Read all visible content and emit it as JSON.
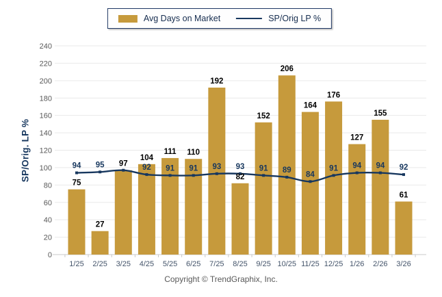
{
  "legend": {
    "bar_label": "Avg Days on Market",
    "line_label": "SP/Orig LP %"
  },
  "footer": {
    "copyright": "Copyright © TrendGraphix, Inc."
  },
  "chart_data": {
    "type": "bar",
    "title": "",
    "xlabel": "",
    "ylabel": "SP/Orig. LP %",
    "categories": [
      "1/25",
      "2/25",
      "3/25",
      "4/25",
      "5/25",
      "6/25",
      "7/25",
      "8/25",
      "9/25",
      "10/25",
      "11/25",
      "12/25",
      "1/26",
      "2/26",
      "3/26"
    ],
    "series": [
      {
        "name": "Avg Days on Market",
        "type": "bar",
        "color": "#C69A3C",
        "values": [
          75,
          27,
          97,
          104,
          111,
          110,
          192,
          82,
          152,
          206,
          164,
          176,
          127,
          155,
          61
        ]
      },
      {
        "name": "SP/Orig LP %",
        "type": "line",
        "color": "#17375E",
        "values": [
          94,
          95,
          97,
          92,
          91,
          91,
          93,
          93,
          91,
          89,
          84,
          91,
          94,
          94,
          92
        ]
      }
    ],
    "ylim": [
      0,
      240
    ],
    "yticks": [
      0,
      20,
      40,
      60,
      80,
      100,
      120,
      140,
      160,
      180,
      200,
      220,
      240
    ],
    "grid": true,
    "legend_position": "top-center",
    "colors": {
      "grid": "#E9E9E9",
      "axis": "#C9C9C9",
      "tick_label": "#595959",
      "x_label": "#44546A",
      "bar_label": "#000000",
      "line_label": "#17375E",
      "background": "#FFFFFF"
    }
  }
}
